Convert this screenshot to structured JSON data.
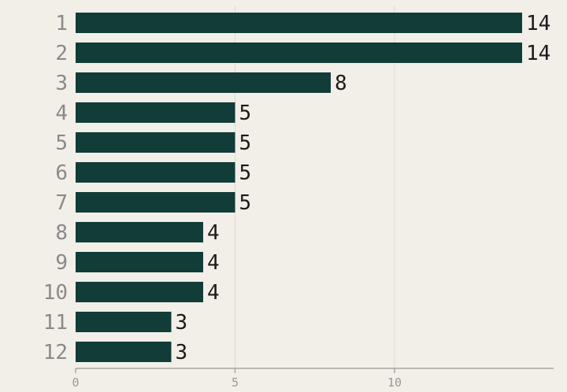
{
  "chart_data": {
    "type": "bar",
    "orientation": "horizontal",
    "categories": [
      "1",
      "2",
      "3",
      "4",
      "5",
      "6",
      "7",
      "8",
      "9",
      "10",
      "11",
      "12"
    ],
    "values": [
      14,
      14,
      8,
      5,
      5,
      5,
      5,
      4,
      4,
      4,
      3,
      3
    ],
    "title": "",
    "xlabel": "",
    "ylabel": "",
    "xlim": [
      0,
      15
    ],
    "xticks": [
      0,
      5,
      10
    ],
    "grid": true,
    "bar_color": "#113c38",
    "background_color": "#f2eee8"
  }
}
